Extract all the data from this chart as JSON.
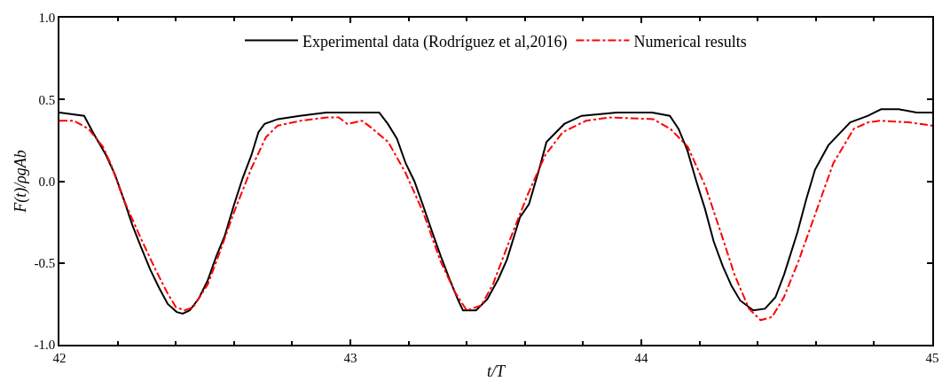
{
  "chart_data": {
    "type": "line",
    "xlabel": "t/T",
    "ylabel": "F(t)/ρgAb",
    "xlim": [
      42,
      45
    ],
    "xticks": [
      42,
      43,
      44,
      45
    ],
    "ylim": [
      -1.0,
      1.0
    ],
    "yticks": [
      {
        "value": -1,
        "label": "-1.0"
      },
      {
        "value": -0.5,
        "label": "-0.5"
      },
      {
        "value": 0,
        "label": "0.0"
      },
      {
        "value": 0.5,
        "label": "0.5"
      },
      {
        "value": 1,
        "label": "1.0"
      }
    ],
    "legend": "top",
    "marker": "none",
    "series": [
      {
        "name": "Experimental data (Rodríguez et al,2016)",
        "color": "#000000",
        "line_style": "solid",
        "x": [
          42.0,
          42.085,
          42.1,
          42.115,
          42.16,
          42.191,
          42.221,
          42.251,
          42.282,
          42.312,
          42.342,
          42.372,
          42.403,
          42.424,
          42.448,
          42.478,
          42.509,
          42.539,
          42.569,
          42.599,
          42.63,
          42.66,
          42.684,
          42.705,
          42.751,
          42.826,
          42.917,
          43.008,
          43.099,
          43.129,
          43.16,
          43.19,
          43.22,
          43.25,
          43.281,
          43.311,
          43.341,
          43.371,
          43.387,
          43.432,
          43.471,
          43.508,
          43.538,
          43.583,
          43.614,
          43.65,
          43.674,
          43.735,
          43.795,
          43.916,
          44.037,
          44.098,
          44.128,
          44.158,
          44.189,
          44.219,
          44.249,
          44.28,
          44.31,
          44.34,
          44.385,
          44.425,
          44.461,
          44.491,
          44.537,
          44.567,
          44.597,
          44.643,
          44.718,
          44.779,
          44.824,
          44.885,
          44.946,
          45.0
        ],
        "values": [
          0.42,
          0.4,
          0.35,
          0.3,
          0.16,
          0.04,
          -0.11,
          -0.27,
          -0.41,
          -0.54,
          -0.65,
          -0.75,
          -0.8,
          -0.81,
          -0.79,
          -0.72,
          -0.61,
          -0.46,
          -0.33,
          -0.15,
          0.02,
          0.16,
          0.3,
          0.35,
          0.38,
          0.4,
          0.42,
          0.42,
          0.42,
          0.35,
          0.26,
          0.11,
          0.0,
          -0.15,
          -0.31,
          -0.46,
          -0.6,
          -0.73,
          -0.79,
          -0.79,
          -0.72,
          -0.6,
          -0.48,
          -0.22,
          -0.14,
          0.08,
          0.24,
          0.35,
          0.4,
          0.42,
          0.42,
          0.4,
          0.32,
          0.19,
          0.0,
          -0.17,
          -0.37,
          -0.52,
          -0.64,
          -0.73,
          -0.79,
          -0.78,
          -0.71,
          -0.57,
          -0.31,
          -0.11,
          0.07,
          0.22,
          0.36,
          0.4,
          0.44,
          0.44,
          0.42,
          0.42
        ]
      },
      {
        "name": "Numerical results",
        "color": "#ff0000",
        "line_style": "dashdot",
        "x": [
          42.0,
          42.05,
          42.1,
          42.15,
          42.18,
          42.22,
          42.28,
          42.33,
          42.37,
          42.4,
          42.43,
          42.46,
          42.51,
          42.55,
          42.6,
          42.66,
          42.71,
          42.75,
          42.83,
          42.92,
          42.96,
          42.99,
          43.04,
          43.07,
          43.13,
          43.19,
          43.25,
          43.31,
          43.36,
          43.4,
          43.45,
          43.49,
          43.55,
          43.61,
          43.67,
          43.73,
          43.81,
          43.89,
          44.04,
          44.1,
          44.16,
          44.22,
          44.28,
          44.32,
          44.37,
          44.41,
          44.45,
          44.49,
          44.54,
          44.6,
          44.66,
          44.73,
          44.78,
          44.82,
          44.92,
          45.0
        ],
        "values": [
          0.37,
          0.37,
          0.32,
          0.21,
          0.09,
          -0.11,
          -0.35,
          -0.54,
          -0.68,
          -0.77,
          -0.79,
          -0.77,
          -0.63,
          -0.44,
          -0.19,
          0.08,
          0.27,
          0.34,
          0.37,
          0.39,
          0.39,
          0.35,
          0.37,
          0.33,
          0.24,
          0.05,
          -0.19,
          -0.49,
          -0.68,
          -0.79,
          -0.76,
          -0.63,
          -0.35,
          -0.08,
          0.16,
          0.3,
          0.37,
          0.39,
          0.38,
          0.32,
          0.21,
          -0.03,
          -0.35,
          -0.57,
          -0.78,
          -0.85,
          -0.83,
          -0.71,
          -0.49,
          -0.19,
          0.11,
          0.32,
          0.36,
          0.37,
          0.36,
          0.34
        ]
      }
    ]
  }
}
